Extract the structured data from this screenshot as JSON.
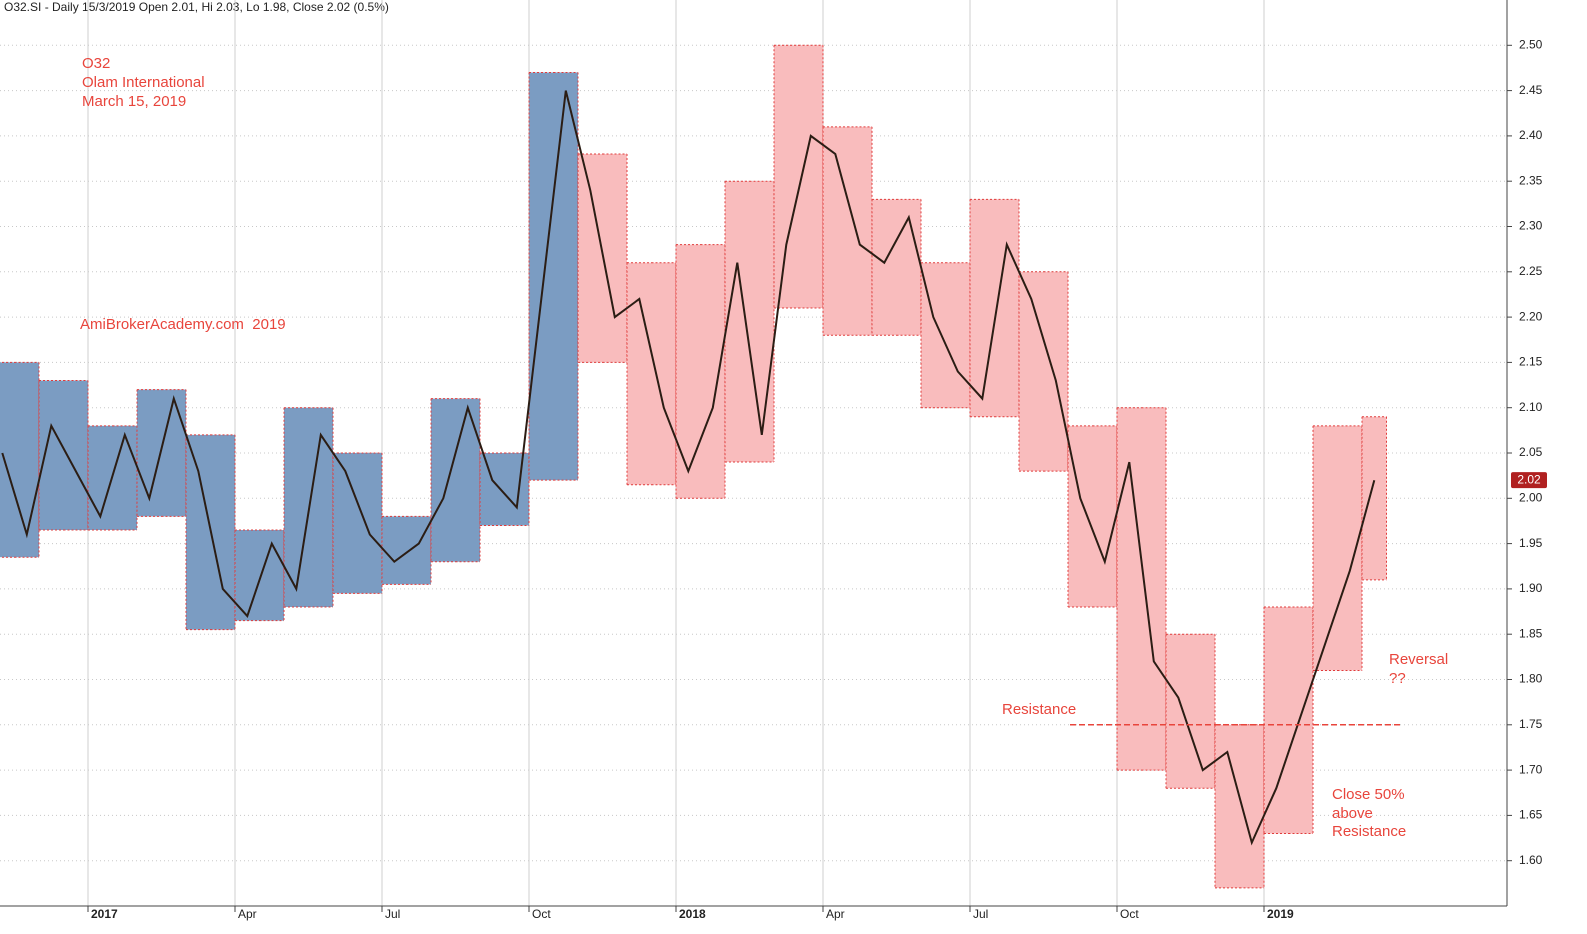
{
  "chart_data": {
    "type": "line",
    "title": "O32.SI - Daily 15/3/2019 Open 2.01, Hi 2.03, Lo 1.98, Close 2.02 (0.5%)",
    "annotations": [
      "O32",
      "Olam International",
      "March 15, 2019",
      "AmiBrokerAcademy.com  2019",
      "Resistance",
      "Reversal",
      "??",
      "Close 50%",
      "above",
      "Resistance"
    ],
    "categories": [
      null,
      null,
      null,
      null,
      "2017",
      null,
      null,
      null,
      null,
      null,
      "Apr",
      null,
      null,
      null,
      null,
      null,
      "Jul",
      null,
      null,
      null,
      null,
      null,
      "Oct",
      null,
      null,
      null,
      null,
      null,
      "2018",
      null,
      null,
      null,
      null,
      null,
      "Apr",
      null,
      null,
      null,
      null,
      null,
      "Jul",
      null,
      null,
      null,
      null,
      null,
      "Oct",
      null,
      null,
      null,
      null,
      null,
      "2019",
      null,
      null,
      null,
      null
    ],
    "series": [
      {
        "color": "#2b1d14",
        "values": [
          2.05,
          1.96,
          2.08,
          2.03,
          1.98,
          2.07,
          2.0,
          2.11,
          2.03,
          1.9,
          1.87,
          1.95,
          1.9,
          2.07,
          2.03,
          1.96,
          1.93,
          1.95,
          2.0,
          2.1,
          2.02,
          1.99,
          2.22,
          2.45,
          2.34,
          2.2,
          2.22,
          2.1,
          2.03,
          2.1,
          2.26,
          2.07,
          2.28,
          2.4,
          2.38,
          2.28,
          2.26,
          2.31,
          2.2,
          2.14,
          2.11,
          2.28,
          2.22,
          2.13,
          2.0,
          1.93,
          2.04,
          1.82,
          1.78,
          1.7,
          1.72,
          1.62,
          1.68,
          1.76,
          1.84,
          1.92,
          2.02
        ]
      }
    ],
    "box_high": [
      2.15,
      2.15,
      2.13,
      2.13,
      2.08,
      2.08,
      2.12,
      2.12,
      2.07,
      2.07,
      1.965,
      1.965,
      2.1,
      2.1,
      2.05,
      2.05,
      1.98,
      1.98,
      2.11,
      2.11,
      2.05,
      2.05,
      2.47,
      2.47,
      2.38,
      2.38,
      2.26,
      2.26,
      2.28,
      2.28,
      2.35,
      2.35,
      2.5,
      2.5,
      2.41,
      2.41,
      2.33,
      2.33,
      2.26,
      2.26,
      2.33,
      2.33,
      2.25,
      2.25,
      2.08,
      2.08,
      2.1,
      2.1,
      1.85,
      1.85,
      1.75,
      1.75,
      1.88,
      1.88,
      2.08,
      2.08,
      2.09
    ],
    "box_low": [
      1.935,
      1.935,
      1.965,
      1.965,
      1.965,
      1.965,
      1.98,
      1.98,
      1.855,
      1.855,
      1.865,
      1.865,
      1.88,
      1.88,
      1.895,
      1.895,
      1.905,
      1.905,
      1.93,
      1.93,
      1.97,
      1.97,
      2.02,
      2.02,
      2.15,
      2.15,
      2.015,
      2.015,
      2.0,
      2.0,
      2.04,
      2.04,
      2.21,
      2.21,
      2.18,
      2.18,
      2.18,
      2.18,
      2.1,
      2.1,
      2.09,
      2.09,
      2.03,
      2.03,
      1.88,
      1.88,
      1.7,
      1.7,
      1.68,
      1.68,
      1.57,
      1.57,
      1.63,
      1.63,
      1.81,
      1.81,
      1.91
    ],
    "box_colors": [
      "#7b9cc2",
      "#7b9cc2",
      "#7b9cc2",
      "#7b9cc2",
      "#7b9cc2",
      "#7b9cc2",
      "#7b9cc2",
      "#7b9cc2",
      "#7b9cc2",
      "#7b9cc2",
      "#7b9cc2",
      "#7b9cc2",
      "#7b9cc2",
      "#7b9cc2",
      "#7b9cc2",
      "#7b9cc2",
      "#7b9cc2",
      "#7b9cc2",
      "#7b9cc2",
      "#7b9cc2",
      "#7b9cc2",
      "#7b9cc2",
      "#7b9cc2",
      "#7b9cc2",
      "#f9bcbd",
      "#f9bcbd",
      "#f9bcbd",
      "#f9bcbd",
      "#f9bcbd",
      "#f9bcbd",
      "#f9bcbd",
      "#f9bcbd",
      "#f9bcbd",
      "#f9bcbd",
      "#f9bcbd",
      "#f9bcbd",
      "#f9bcbd",
      "#f9bcbd",
      "#f9bcbd",
      "#f9bcbd",
      "#f9bcbd",
      "#f9bcbd",
      "#f9bcbd",
      "#f9bcbd",
      "#f9bcbd",
      "#f9bcbd",
      "#f9bcbd",
      "#f9bcbd",
      "#f9bcbd",
      "#f9bcbd",
      "#f9bcbd",
      "#f9bcbd",
      "#f9bcbd",
      "#f9bcbd",
      "#f9bcbd",
      "#f9bcbd",
      "#f9bcbd"
    ],
    "box_border_color": "#e03c3c",
    "resistance": 1.75,
    "last_price": 2.02,
    "ylim": [
      1.55,
      2.55
    ],
    "yticks": [
      {
        "value": 1.6,
        "label": "1.60"
      },
      {
        "value": 1.65,
        "label": "1.65"
      },
      {
        "value": 1.7,
        "label": "1.70"
      },
      {
        "value": 1.75,
        "label": "1.75"
      },
      {
        "value": 1.8,
        "label": "1.80"
      },
      {
        "value": 1.85,
        "label": "1.85"
      },
      {
        "value": 1.9,
        "label": "1.90"
      },
      {
        "value": 1.95,
        "label": "1.95"
      },
      {
        "value": 2.0,
        "label": "2.00"
      },
      {
        "value": 2.05,
        "label": "2.05"
      },
      {
        "value": 2.1,
        "label": "2.10"
      },
      {
        "value": 2.15,
        "label": "2.15"
      },
      {
        "value": 2.2,
        "label": "2.20"
      },
      {
        "value": 2.25,
        "label": "2.25"
      },
      {
        "value": 2.3,
        "label": "2.30"
      },
      {
        "value": 2.35,
        "label": "2.35"
      },
      {
        "value": 2.4,
        "label": "2.40"
      },
      {
        "value": 2.45,
        "label": "2.45"
      },
      {
        "value": 2.5,
        "label": "2.50"
      }
    ],
    "grid": true
  }
}
